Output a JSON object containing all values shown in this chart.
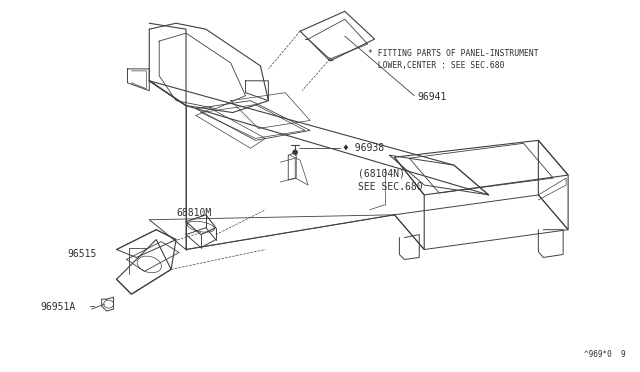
{
  "bg_color": "#ffffff",
  "line_color": "#404040",
  "text_color": "#303030",
  "fig_width": 6.4,
  "fig_height": 3.72,
  "dpi": 100,
  "title_note_line1": "* FITTING PARTS OF PANEL-INSTRUMENT",
  "title_note_line2": "  LOWER,CENTER : SEE SEC.680",
  "watermark": "^969*0  9"
}
